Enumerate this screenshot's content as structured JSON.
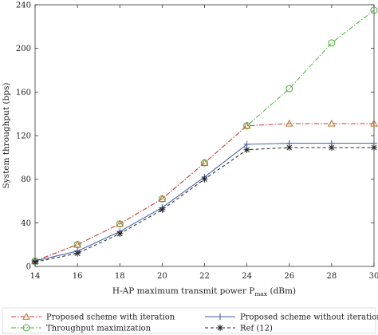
{
  "chart_data": {
    "type": "line",
    "title": "",
    "xlabel_main": "H-AP maximum transmit power P",
    "xlabel_sub": "max",
    "xlabel_unit": " (dBm)",
    "ylabel": "System throughput (bps)",
    "x": [
      14,
      16,
      18,
      20,
      22,
      24,
      26,
      28,
      30
    ],
    "xlim": [
      14,
      30
    ],
    "ylim": [
      0,
      240
    ],
    "xticks": [
      "14",
      "16",
      "18",
      "20",
      "22",
      "24",
      "26",
      "28",
      "30"
    ],
    "yticks": [
      "0",
      "40",
      "80",
      "120",
      "160",
      "200",
      "240"
    ],
    "grid": false,
    "legend_position": "bottom",
    "series": [
      {
        "name": "Proposed scheme with iteration",
        "values": [
          5,
          20,
          39,
          62,
          95,
          129,
          131,
          131,
          131
        ],
        "color": "#e0323c",
        "marker_color": "#b0762e",
        "dash": "6 2 1.5 2",
        "marker": "triangle"
      },
      {
        "name": "Proposed scheme without iteration",
        "values": [
          5,
          14,
          32,
          54,
          82,
          112,
          113,
          113,
          113
        ],
        "color": "#3a5aa8",
        "marker_color": "#3a5aa8",
        "dash": "",
        "marker": "plus"
      },
      {
        "name": "Throughput maximization",
        "values": [
          5,
          20,
          39,
          62,
          95,
          129,
          163,
          205,
          235
        ],
        "color": "#4caf3a",
        "marker_color": "#4caf3a",
        "dash": "6 2 1.5 2",
        "marker": "circle"
      },
      {
        "name": "Ref (12)",
        "values": [
          4,
          12,
          30,
          52,
          80,
          107,
          109,
          109,
          109
        ],
        "color": "#222222",
        "marker_color": "#222222",
        "dash": "4 3",
        "marker": "asterisk"
      }
    ]
  }
}
